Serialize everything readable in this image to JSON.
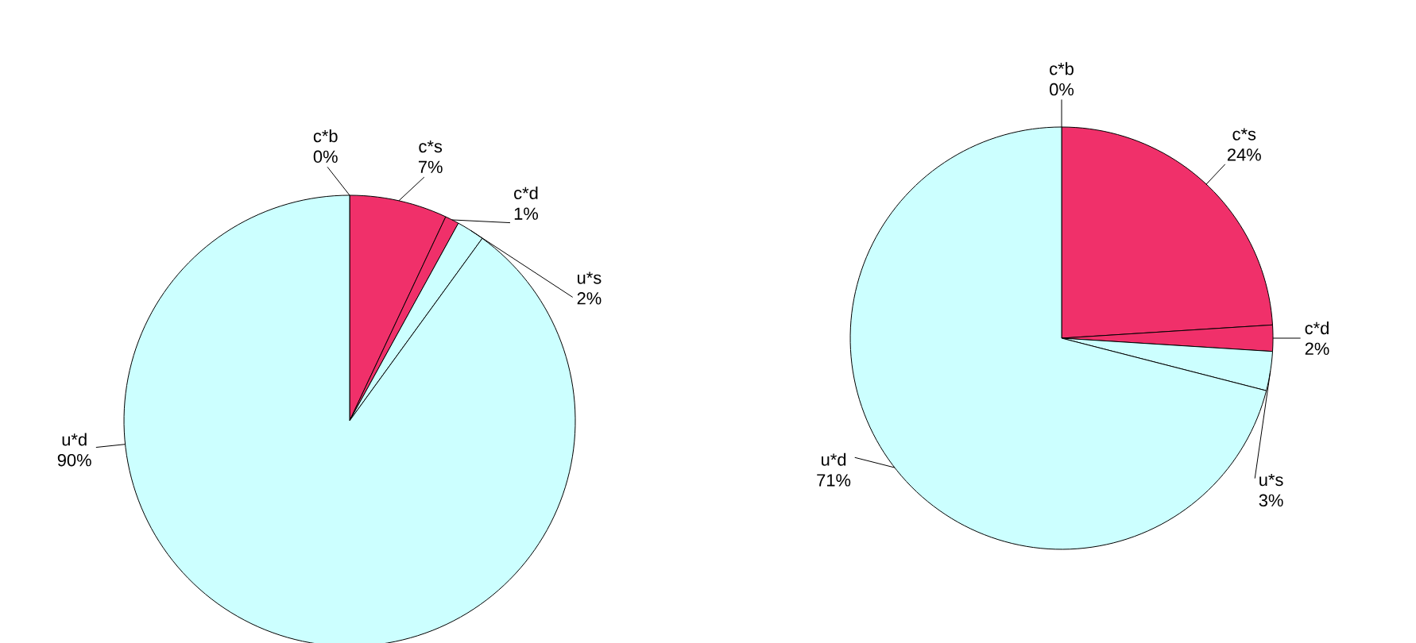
{
  "chart_data": [
    {
      "type": "pie",
      "categories": [
        "c*b",
        "c*s",
        "c*d",
        "u*s",
        "u*d"
      ],
      "values": [
        0,
        7,
        1,
        2,
        90
      ],
      "colors": [
        "#f0306a",
        "#f0306a",
        "#f0306a",
        "#ccffff",
        "#ccffff"
      ],
      "value_labels": [
        "0%",
        "7%",
        "1%",
        "2%",
        "90%"
      ]
    },
    {
      "type": "pie",
      "categories": [
        "c*b",
        "c*s",
        "c*d",
        "u*s",
        "u*d"
      ],
      "values": [
        0,
        24,
        2,
        3,
        71
      ],
      "colors": [
        "#f0306a",
        "#f0306a",
        "#f0306a",
        "#ccffff",
        "#ccffff"
      ],
      "value_labels": [
        "0%",
        "24%",
        "2%",
        "3%",
        "71%"
      ]
    }
  ]
}
